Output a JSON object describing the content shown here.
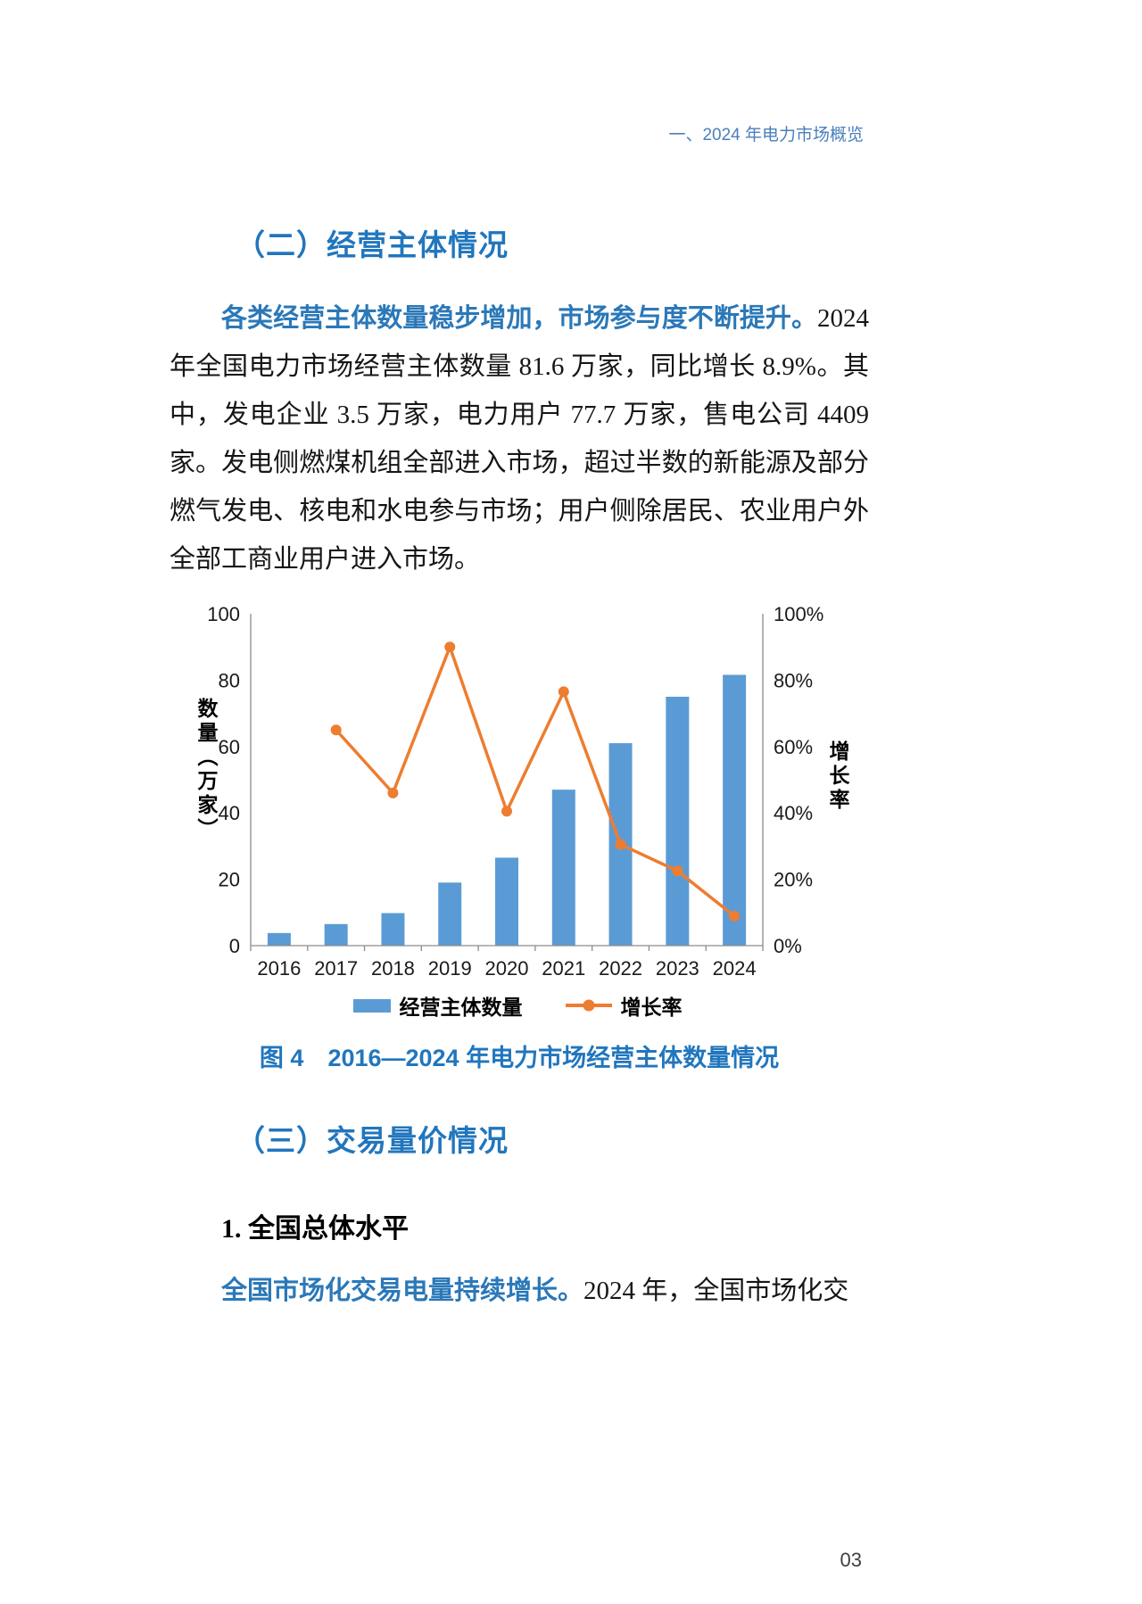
{
  "page": {
    "header": "一、2024 年电力市场概览",
    "page_number": "03"
  },
  "section2": {
    "heading": "（二）经营主体情况",
    "lead": "各类经营主体数量稳步增加，市场参与度不断提升。",
    "body": "2024 年全国电力市场经营主体数量 81.6 万家，同比增长 8.9%。其中，发电企业 3.5 万家，电力用户 77.7 万家，售电公司 4409 家。发电侧燃煤机组全部进入市场，超过半数的新能源及部分燃气发电、核电和水电参与市场；用户侧除居民、农业用户外全部工商业用户进入市场。"
  },
  "figure": {
    "caption": "图 4　2016—2024 年电力市场经营主体数量情况"
  },
  "chart_data": {
    "type": "bar",
    "overlay": "line",
    "title": "",
    "categories": [
      "2016",
      "2017",
      "2018",
      "2019",
      "2020",
      "2021",
      "2022",
      "2023",
      "2024"
    ],
    "series": [
      {
        "name": "经营主体数量",
        "type": "bar",
        "axis": "left",
        "values": [
          3.8,
          6.5,
          9.8,
          19,
          26.5,
          47,
          61,
          75,
          81.6
        ]
      },
      {
        "name": "增长率",
        "type": "line",
        "axis": "right",
        "values": [
          null,
          65,
          46,
          90,
          40.5,
          76.5,
          30.5,
          22.5,
          8.9
        ]
      }
    ],
    "left_axis": {
      "label": "数量（万家）",
      "min": 0,
      "max": 100,
      "ticks": [
        0,
        20,
        40,
        60,
        80,
        100
      ]
    },
    "right_axis": {
      "label": "增长率",
      "min": 0,
      "max": 100,
      "ticks": [
        "0%",
        "20%",
        "40%",
        "60%",
        "80%",
        "100%"
      ]
    },
    "legend_position": "bottom",
    "grid": false,
    "colors": {
      "bar": "#5B9BD5",
      "line": "#ED7D31"
    }
  },
  "section3": {
    "heading": "（三）交易量价情况",
    "subheading": "1. 全国总体水平",
    "lead": "全国市场化交易电量持续增长。",
    "body": "2024 年，全国市场化交"
  },
  "accent_color": "#2176BD"
}
